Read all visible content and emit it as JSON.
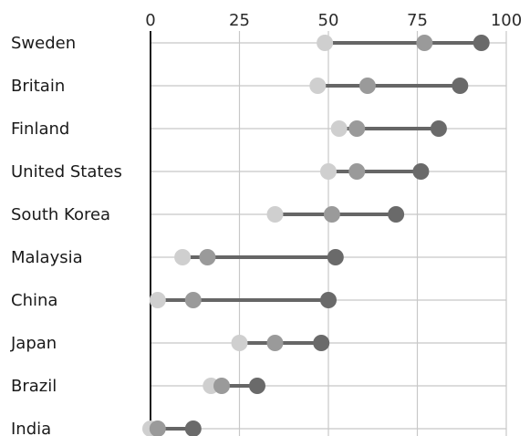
{
  "chart_data": {
    "type": "dumbbell",
    "title": "",
    "xlabel": "",
    "ylabel": "",
    "xlim": [
      0,
      100
    ],
    "xticks": [
      0,
      25,
      50,
      75,
      100
    ],
    "grid": true,
    "legend": "none",
    "categories": [
      "Sweden",
      "Britain",
      "Finland",
      "United States",
      "South Korea",
      "Malaysia",
      "China",
      "Japan",
      "Brazil",
      "India"
    ],
    "series": [
      {
        "values": [
          49,
          47,
          53,
          50,
          35,
          9,
          2,
          25,
          17,
          0
        ],
        "color": "#cfcfcf"
      },
      {
        "values": [
          77,
          61,
          58,
          58,
          51,
          16,
          12,
          35,
          20,
          2
        ],
        "color": "#9a9a9a"
      },
      {
        "values": [
          93,
          87,
          81,
          76,
          69,
          52,
          50,
          48,
          30,
          12
        ],
        "color": "#6a6a6a"
      }
    ],
    "line_color": "#666666"
  }
}
